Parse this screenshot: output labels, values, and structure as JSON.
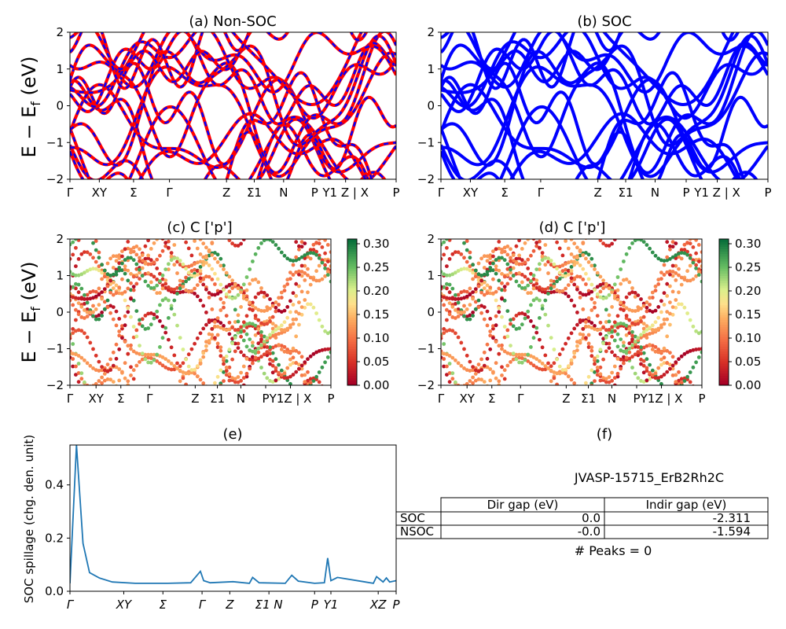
{
  "figure": {
    "ylabel": "E − E_f (eV)"
  },
  "panels": {
    "a": {
      "title": "(a) Non-SOC"
    },
    "b": {
      "title": "(b) SOC"
    },
    "c": {
      "title": "(c)  C ['p']"
    },
    "d": {
      "title": "(d) C ['p']"
    },
    "e": {
      "title": "(e)",
      "ylabel": "SOC spillage (chg. den. unit)"
    },
    "f": {
      "title": "(f)"
    }
  },
  "table": {
    "caption": "JVASP-15715_ErB2Rh2C",
    "headers": [
      "Dir gap (eV)",
      "Indir gap (eV)"
    ],
    "rows": [
      {
        "label": "SOC",
        "dir": "0.0",
        "indir": "-2.311"
      },
      {
        "label": "NSOC",
        "dir": "-0.0",
        "indir": "-1.594"
      }
    ],
    "peaks": "# Peaks = 0"
  },
  "colorbar": {
    "ticks": [
      "0.00",
      "0.05",
      "0.10",
      "0.15",
      "0.20",
      "0.25",
      "0.30"
    ],
    "range": [
      0,
      0.31
    ],
    "colormap": "RdYlGn"
  },
  "colors": {
    "nonsoc": "#ff0000",
    "soc": "#0000ff",
    "spillage": "#1f77b4"
  },
  "chart_data": [
    {
      "type": "line",
      "title": "(a) Non-SOC",
      "ylabel": "E − E_f (eV)",
      "ylim": [
        -2,
        2
      ],
      "yticks": [
        "2",
        "1",
        "0",
        "−1",
        "−2"
      ],
      "kpath_labels": [
        "Γ",
        "XY",
        "Σ",
        "Γ",
        "Z",
        "Σ1",
        "N",
        "P",
        "Y1 Z | X",
        "P"
      ],
      "series": [
        {
          "name": "Non-SOC",
          "color": "#ff0000"
        },
        {
          "name": "SOC",
          "color": "#0000ff"
        }
      ]
    },
    {
      "type": "line",
      "title": "(b) SOC",
      "ylim": [
        -2,
        2
      ],
      "yticks": [
        "2",
        "1",
        "0",
        "−1",
        "−2"
      ],
      "kpath_labels": [
        "Γ",
        "XY",
        "Σ",
        "Γ",
        "Z",
        "Σ1",
        "N",
        "P",
        "Y1 Z | X",
        "P"
      ]
    },
    {
      "type": "scatter",
      "title": "(c)  C ['p']",
      "ylabel": "E − E_f (eV)",
      "ylim": [
        -2,
        2
      ],
      "yticks": [
        "2",
        "1",
        "0",
        "−1",
        "−2"
      ],
      "kpath_labels": [
        "Γ",
        "XY",
        "Σ",
        "Γ",
        "Z",
        "Σ1",
        "N",
        "P",
        "Y1Z | X",
        "P"
      ]
    },
    {
      "type": "scatter",
      "title": "(d) C ['p']",
      "ylim": [
        -2,
        2
      ],
      "yticks": [
        "2",
        "1",
        "0",
        "−1",
        "−2"
      ],
      "kpath_labels": [
        "Γ",
        "XY",
        "Σ",
        "Γ",
        "Z",
        "Σ1",
        "N",
        "P",
        "Y1Z | X",
        "P"
      ]
    },
    {
      "type": "line",
      "title": "(e)",
      "ylabel": "SOC spillage (chg. den. unit)",
      "ylim": [
        0,
        0.55
      ],
      "yticks": [
        "0.0",
        "0.2",
        "0.4"
      ],
      "kpath_labels": [
        "Γ",
        "XY",
        "Σ",
        "Γ",
        "Z",
        "Σ1 N",
        "P",
        "Y1",
        "XZ",
        "P"
      ],
      "x": [
        0,
        0.02,
        0.04,
        0.06,
        0.09,
        0.13,
        0.2,
        0.26,
        0.3,
        0.37,
        0.4,
        0.41,
        0.43,
        0.5,
        0.55,
        0.56,
        0.58,
        0.66,
        0.68,
        0.7,
        0.75,
        0.78,
        0.79,
        0.8,
        0.82,
        0.9,
        0.93,
        0.94,
        0.96,
        0.97,
        0.98,
        1
      ],
      "values": [
        0.03,
        0.55,
        0.18,
        0.07,
        0.05,
        0.035,
        0.03,
        0.03,
        0.03,
        0.032,
        0.075,
        0.04,
        0.032,
        0.036,
        0.03,
        0.052,
        0.032,
        0.03,
        0.06,
        0.038,
        0.03,
        0.032,
        0.125,
        0.04,
        0.052,
        0.036,
        0.03,
        0.055,
        0.035,
        0.05,
        0.035,
        0.04
      ]
    }
  ]
}
